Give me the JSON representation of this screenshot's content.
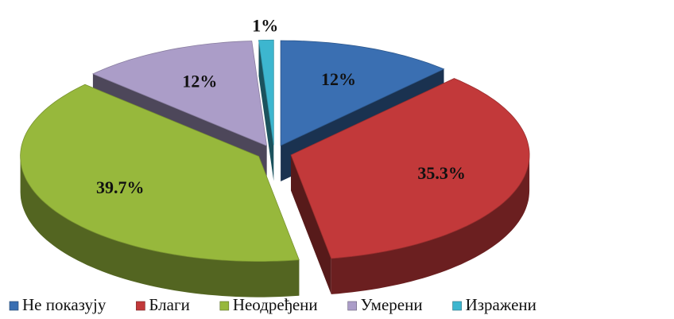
{
  "chart_data": {
    "type": "pie3d",
    "categories": [
      "Не показују",
      "Благи",
      "Неодређени",
      "Умерени",
      "Изражени"
    ],
    "values": [
      12,
      35.3,
      39.7,
      12,
      1
    ],
    "value_labels": [
      "12%",
      "35.3%",
      "39.7%",
      "12%",
      "1%"
    ],
    "colors": [
      "#3a6fb2",
      "#c2393a",
      "#97b83c",
      "#ab9dc8",
      "#3db6cf"
    ],
    "legend": "bottom"
  }
}
